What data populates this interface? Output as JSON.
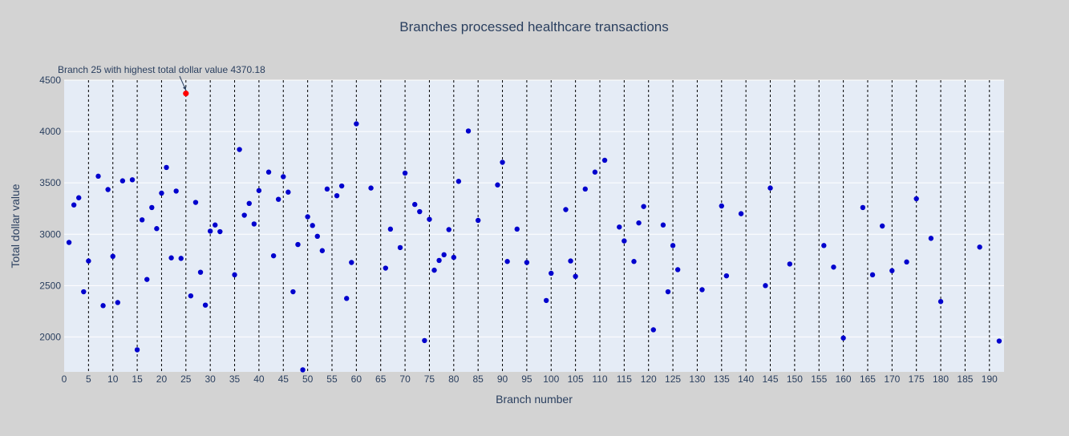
{
  "chart_data": {
    "type": "scatter",
    "title": "Branches processed healthcare transactions",
    "xlabel": "Branch number",
    "ylabel": "Total dollar value",
    "xlim": [
      0,
      193
    ],
    "ylim": [
      1660,
      4500
    ],
    "x_ticks": [
      0,
      5,
      10,
      15,
      20,
      25,
      30,
      35,
      40,
      45,
      50,
      55,
      60,
      65,
      70,
      75,
      80,
      85,
      90,
      95,
      100,
      105,
      110,
      115,
      120,
      125,
      130,
      135,
      140,
      145,
      150,
      155,
      160,
      165,
      170,
      175,
      180,
      185,
      190
    ],
    "y_ticks": [
      2000,
      2500,
      3000,
      3500,
      4000,
      4500
    ],
    "vertical_dashed_lines": [
      5,
      10,
      15,
      20,
      25,
      30,
      35,
      40,
      45,
      50,
      55,
      60,
      65,
      70,
      75,
      80,
      85,
      90,
      95,
      100,
      105,
      110,
      115,
      120,
      125,
      130,
      135,
      140,
      145,
      150,
      155,
      160,
      165,
      170,
      175,
      180,
      185,
      190
    ],
    "grid": true,
    "point_color": "#0000cd",
    "highlight_color": "#ff0000",
    "points": [
      [
        1,
        2920
      ],
      [
        2,
        3285
      ],
      [
        3,
        3355
      ],
      [
        4,
        2440
      ],
      [
        5,
        2740
      ],
      [
        7,
        3565
      ],
      [
        8,
        2305
      ],
      [
        9,
        3435
      ],
      [
        10,
        2785
      ],
      [
        11,
        2335
      ],
      [
        12,
        3520
      ],
      [
        14,
        3530
      ],
      [
        15,
        1875
      ],
      [
        16,
        3140
      ],
      [
        17,
        2560
      ],
      [
        18,
        3260
      ],
      [
        19,
        3055
      ],
      [
        20,
        3400
      ],
      [
        21,
        3650
      ],
      [
        22,
        2770
      ],
      [
        23,
        3420
      ],
      [
        24,
        2765
      ],
      [
        26,
        2400
      ],
      [
        27,
        3310
      ],
      [
        28,
        2630
      ],
      [
        29,
        2310
      ],
      [
        30,
        3030
      ],
      [
        31,
        3090
      ],
      [
        32,
        3025
      ],
      [
        35,
        2605
      ],
      [
        36,
        3825
      ],
      [
        37,
        3185
      ],
      [
        38,
        3300
      ],
      [
        39,
        3100
      ],
      [
        40,
        3425
      ],
      [
        42,
        3605
      ],
      [
        43,
        2790
      ],
      [
        44,
        3340
      ],
      [
        45,
        3560
      ],
      [
        46,
        3410
      ],
      [
        47,
        2440
      ],
      [
        48,
        2900
      ],
      [
        49,
        1680
      ],
      [
        50,
        3170
      ],
      [
        51,
        3085
      ],
      [
        52,
        2980
      ],
      [
        53,
        2840
      ],
      [
        54,
        3440
      ],
      [
        56,
        3375
      ],
      [
        57,
        3470
      ],
      [
        58,
        2375
      ],
      [
        59,
        2725
      ],
      [
        60,
        4075
      ],
      [
        63,
        3450
      ],
      [
        66,
        2670
      ],
      [
        67,
        3050
      ],
      [
        69,
        2870
      ],
      [
        70,
        3595
      ],
      [
        72,
        3290
      ],
      [
        73,
        3220
      ],
      [
        74,
        1965
      ],
      [
        75,
        3145
      ],
      [
        76,
        2650
      ],
      [
        77,
        2745
      ],
      [
        78,
        2800
      ],
      [
        79,
        3045
      ],
      [
        80,
        2775
      ],
      [
        81,
        3515
      ],
      [
        83,
        4005
      ],
      [
        85,
        3135
      ],
      [
        89,
        3480
      ],
      [
        90,
        3700
      ],
      [
        91,
        2735
      ],
      [
        93,
        3050
      ],
      [
        95,
        2725
      ],
      [
        99,
        2355
      ],
      [
        100,
        2620
      ],
      [
        103,
        3240
      ],
      [
        104,
        2740
      ],
      [
        105,
        2590
      ],
      [
        107,
        3440
      ],
      [
        109,
        3605
      ],
      [
        111,
        3720
      ],
      [
        114,
        3070
      ],
      [
        115,
        2935
      ],
      [
        117,
        2735
      ],
      [
        118,
        3110
      ],
      [
        119,
        3270
      ],
      [
        121,
        2070
      ],
      [
        123,
        3090
      ],
      [
        124,
        2440
      ],
      [
        125,
        2890
      ],
      [
        126,
        2655
      ],
      [
        131,
        2460
      ],
      [
        135,
        3275
      ],
      [
        136,
        2595
      ],
      [
        139,
        3200
      ],
      [
        144,
        2500
      ],
      [
        145,
        3450
      ],
      [
        149,
        2710
      ],
      [
        156,
        2890
      ],
      [
        158,
        2680
      ],
      [
        160,
        1990
      ],
      [
        164,
        3260
      ],
      [
        166,
        2605
      ],
      [
        168,
        3080
      ],
      [
        170,
        2645
      ],
      [
        173,
        2730
      ],
      [
        175,
        3345
      ],
      [
        178,
        2960
      ],
      [
        180,
        2345
      ],
      [
        188,
        2875
      ],
      [
        192,
        1960
      ]
    ],
    "highlight_point": [
      25,
      4370.18
    ],
    "annotation": "Branch 25 with highest total dollar value 4370.18"
  }
}
